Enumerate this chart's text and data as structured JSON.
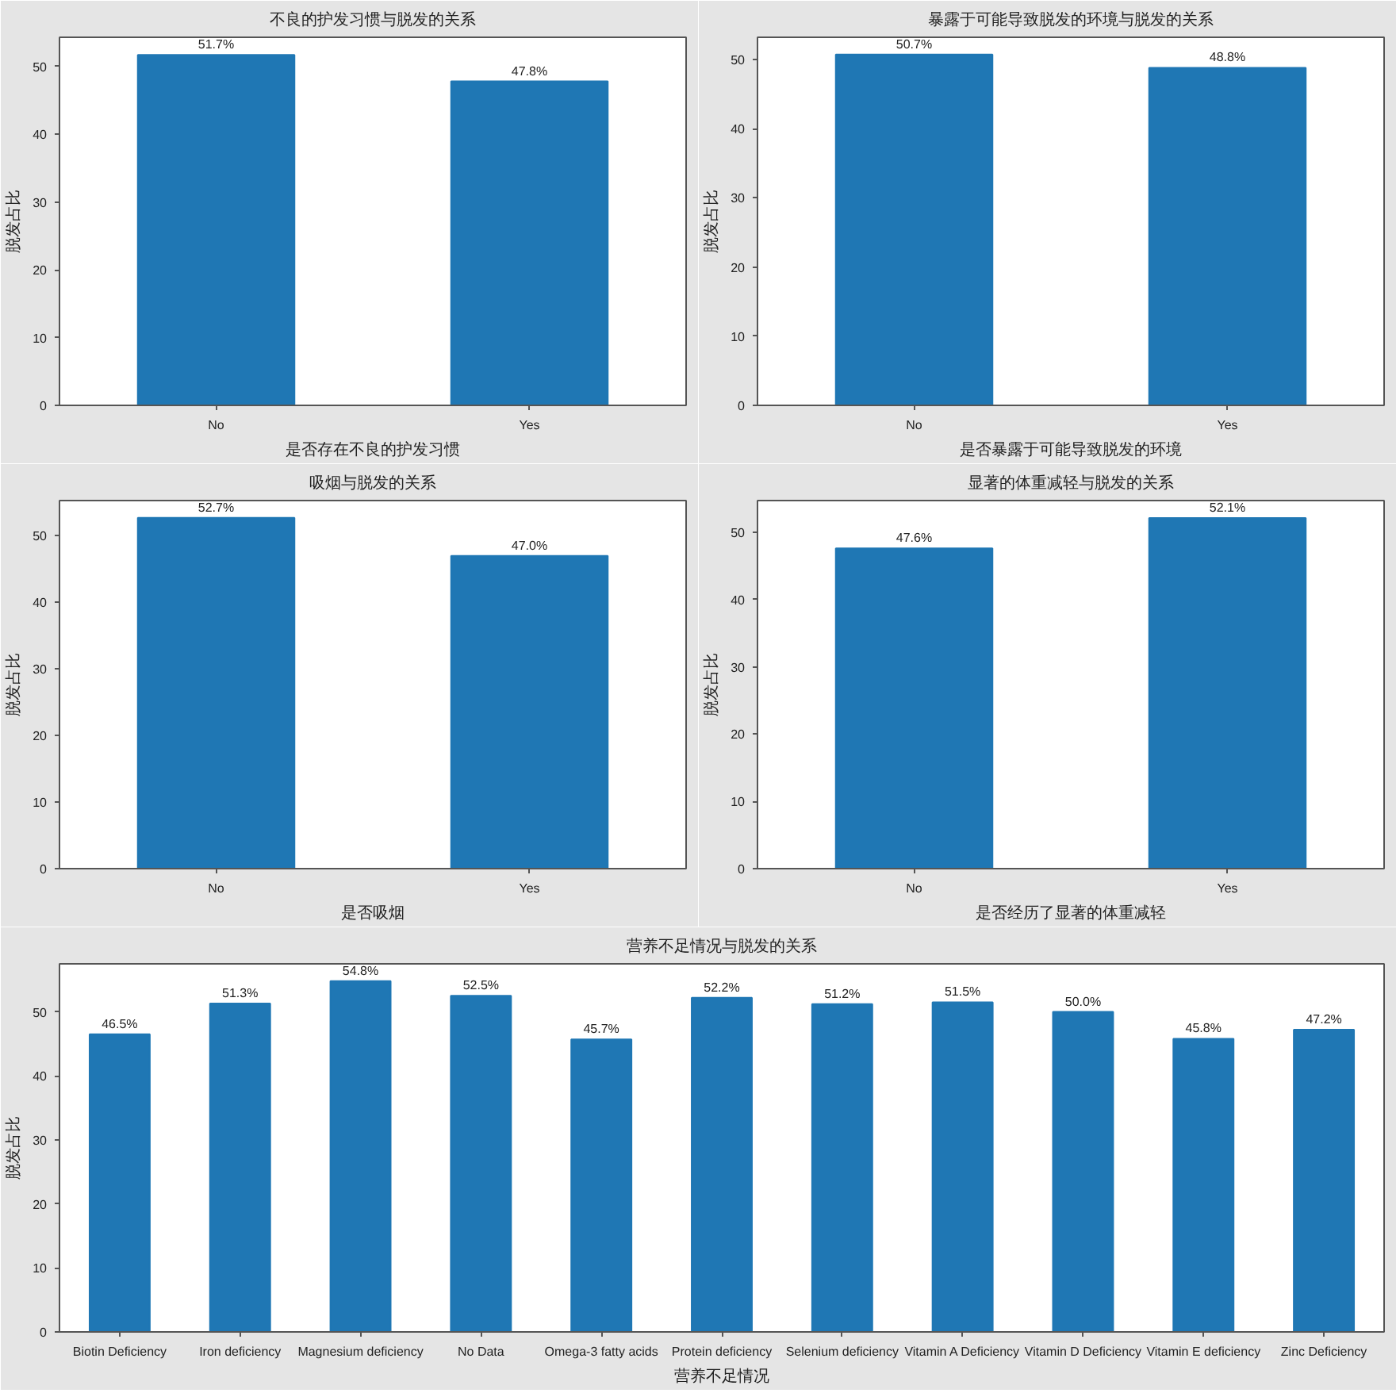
{
  "chart_data": [
    {
      "type": "bar",
      "title": "不良的护发习惯与脱发的关系",
      "xlabel": "是否存在不良的护发习惯",
      "ylabel": "脱发占比",
      "categories": [
        "No",
        "Yes"
      ],
      "values": [
        51.7,
        47.8
      ],
      "value_labels": [
        "51.7%",
        "47.8%"
      ],
      "color": "#1f77b4",
      "ylim": [
        0,
        54.3
      ],
      "yticks": [
        0,
        10,
        20,
        30,
        40,
        50
      ]
    },
    {
      "type": "bar",
      "title": "暴露于可能导致脱发的环境与脱发的关系",
      "xlabel": "是否暴露于可能导致脱发的环境",
      "ylabel": "脱发占比",
      "categories": [
        "No",
        "Yes"
      ],
      "values": [
        50.7,
        48.8
      ],
      "value_labels": [
        "50.7%",
        "48.8%"
      ],
      "color": "#1f77b4",
      "ylim": [
        0,
        53.2
      ],
      "yticks": [
        0,
        10,
        20,
        30,
        40,
        50
      ]
    },
    {
      "type": "bar",
      "title": "吸烟与脱发的关系",
      "xlabel": "是否吸烟",
      "ylabel": "脱发占比",
      "categories": [
        "No",
        "Yes"
      ],
      "values": [
        52.7,
        47.0
      ],
      "value_labels": [
        "52.7%",
        "47.0%"
      ],
      "color": "#1f77b4",
      "ylim": [
        0,
        55.3
      ],
      "yticks": [
        0,
        10,
        20,
        30,
        40,
        50
      ]
    },
    {
      "type": "bar",
      "title": "显著的体重减轻与脱发的关系",
      "xlabel": "是否经历了显著的体重减轻",
      "ylabel": "脱发占比",
      "categories": [
        "No",
        "Yes"
      ],
      "values": [
        47.6,
        52.1
      ],
      "value_labels": [
        "47.6%",
        "52.1%"
      ],
      "color": "#1f77b4",
      "ylim": [
        0,
        54.7
      ],
      "yticks": [
        0,
        10,
        20,
        30,
        40,
        50
      ]
    },
    {
      "type": "bar",
      "title": "营养不足情况与脱发的关系",
      "xlabel": "营养不足情况",
      "ylabel": "脱发占比",
      "categories": [
        "Biotin Deficiency",
        "Iron deficiency",
        "Magnesium deficiency",
        "No Data",
        "Omega-3 fatty acids",
        "Protein deficiency",
        "Selenium deficiency",
        "Vitamin A Deficiency",
        "Vitamin D Deficiency",
        "Vitamin E deficiency",
        "Zinc Deficiency"
      ],
      "values": [
        46.5,
        51.3,
        54.8,
        52.5,
        45.7,
        52.2,
        51.2,
        51.5,
        50.0,
        45.8,
        47.2
      ],
      "value_labels": [
        "46.5%",
        "51.3%",
        "54.8%",
        "52.5%",
        "45.7%",
        "52.2%",
        "51.2%",
        "51.5%",
        "50.0%",
        "45.8%",
        "47.2%"
      ],
      "color": "#1f77b4",
      "ylim": [
        0,
        57.5
      ],
      "yticks": [
        0,
        10,
        20,
        30,
        40,
        50
      ]
    }
  ]
}
